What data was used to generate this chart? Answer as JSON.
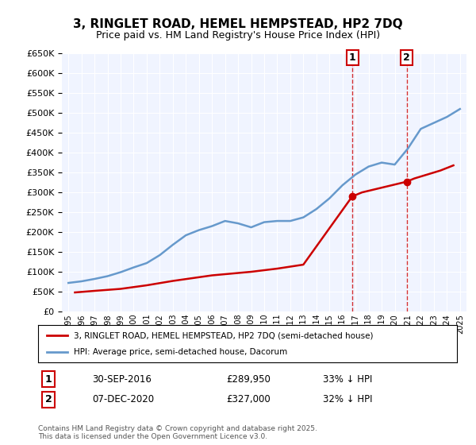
{
  "title": "3, RINGLET ROAD, HEMEL HEMPSTEAD, HP2 7DQ",
  "subtitle": "Price paid vs. HM Land Registry's House Price Index (HPI)",
  "legend_label_red": "3, RINGLET ROAD, HEMEL HEMPSTEAD, HP2 7DQ (semi-detached house)",
  "legend_label_blue": "HPI: Average price, semi-detached house, Dacorum",
  "footer": "Contains HM Land Registry data © Crown copyright and database right 2025.\nThis data is licensed under the Open Government Licence v3.0.",
  "sale1_label": "1",
  "sale1_date": "30-SEP-2016",
  "sale1_price": "£289,950",
  "sale1_pct": "33% ↓ HPI",
  "sale1_year": 2016.75,
  "sale1_value": 289950,
  "sale2_label": "2",
  "sale2_date": "07-DEC-2020",
  "sale2_price": "£327,000",
  "sale2_pct": "32% ↓ HPI",
  "sale2_year": 2020.92,
  "sale2_value": 327000,
  "ylim": [
    0,
    650000
  ],
  "yticks": [
    0,
    50000,
    100000,
    150000,
    200000,
    250000,
    300000,
    350000,
    400000,
    450000,
    500000,
    550000,
    600000,
    650000
  ],
  "color_red": "#cc0000",
  "color_blue": "#6699cc",
  "color_dashed": "#cc0000",
  "bg_color": "#f0f4ff",
  "hpi_years": [
    1995,
    1996,
    1997,
    1998,
    1999,
    2000,
    2001,
    2002,
    2003,
    2004,
    2005,
    2006,
    2007,
    2008,
    2009,
    2010,
    2011,
    2012,
    2013,
    2014,
    2015,
    2016,
    2017,
    2018,
    2019,
    2020,
    2021,
    2022,
    2023,
    2024,
    2025
  ],
  "hpi_values": [
    72000,
    76000,
    82000,
    89000,
    99000,
    111000,
    122000,
    142000,
    168000,
    192000,
    205000,
    215000,
    228000,
    222000,
    212000,
    225000,
    228000,
    228000,
    237000,
    258000,
    285000,
    318000,
    345000,
    365000,
    375000,
    370000,
    410000,
    460000,
    475000,
    490000,
    510000
  ],
  "price_years": [
    1995.5,
    1997,
    1999,
    2001,
    2003,
    2006,
    2009,
    2011,
    2013,
    2016.75,
    2017.5,
    2020.92,
    2021.5,
    2022.5,
    2023.5,
    2024.5
  ],
  "price_values": [
    48000,
    52000,
    57000,
    66000,
    77000,
    91000,
    100000,
    108000,
    118000,
    289950,
    300000,
    327000,
    335000,
    345000,
    355000,
    368000
  ]
}
